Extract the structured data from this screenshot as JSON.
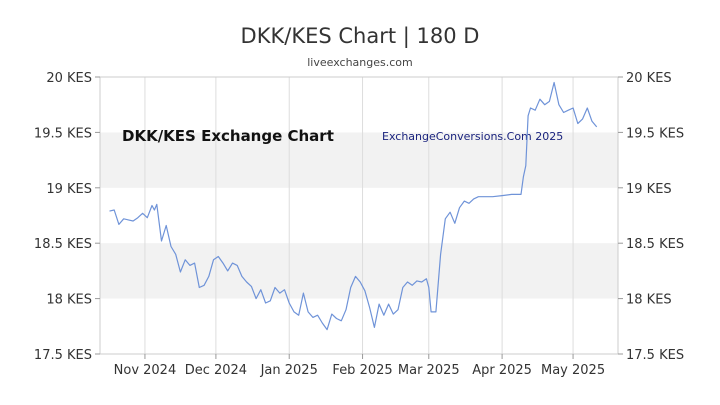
{
  "chart_data": {
    "type": "line",
    "title": "DKK/KES Chart | 180 D",
    "subtitle": "liveexchanges.com",
    "inner_title": "DKK/KES Exchange Chart",
    "watermark": "ExchangeConversions.Com 2025",
    "xlabel": "",
    "ylabel": "",
    "ylim": [
      17.5,
      20
    ],
    "xlim": [
      "2024-10-13",
      "2025-05-20"
    ],
    "y_ticks": [
      {
        "value": 20,
        "label": "20 KES"
      },
      {
        "value": 19.5,
        "label": "19.5 KES"
      },
      {
        "value": 19,
        "label": "19 KES"
      },
      {
        "value": 18.5,
        "label": "18.5 KES"
      },
      {
        "value": 18,
        "label": "18 KES"
      },
      {
        "value": 17.5,
        "label": "17.5 KES"
      }
    ],
    "x_ticks": [
      {
        "date": "2024-11-01",
        "label": "Nov 2024"
      },
      {
        "date": "2024-12-01",
        "label": "Dec 2024"
      },
      {
        "date": "2025-01-01",
        "label": "Jan 2025"
      },
      {
        "date": "2025-02-01",
        "label": "Feb 2025"
      },
      {
        "date": "2025-03-01",
        "label": "Mar 2025"
      },
      {
        "date": "2025-04-01",
        "label": "Apr 2025"
      },
      {
        "date": "2025-05-01",
        "label": "May 2025"
      }
    ],
    "grid": "alternating horizontal bands",
    "line_color": "#6f93d8",
    "band_color": "#f2f2f2",
    "series": [
      {
        "x": [
          "2024-10-17",
          "2024-10-19",
          "2024-10-21",
          "2024-10-23",
          "2024-10-25",
          "2024-10-27",
          "2024-10-29",
          "2024-10-31",
          "2024-11-02",
          "2024-11-04",
          "2024-11-05",
          "2024-11-06",
          "2024-11-08",
          "2024-11-10",
          "2024-11-12",
          "2024-11-14",
          "2024-11-16",
          "2024-11-18",
          "2024-11-20",
          "2024-11-22",
          "2024-11-24",
          "2024-11-26",
          "2024-11-28",
          "2024-11-30",
          "2024-12-02",
          "2024-12-04",
          "2024-12-06",
          "2024-12-08",
          "2024-12-10",
          "2024-12-12",
          "2024-12-14",
          "2024-12-16",
          "2024-12-18",
          "2024-12-20",
          "2024-12-22",
          "2024-12-24",
          "2024-12-26",
          "2024-12-28",
          "2024-12-30",
          "2025-01-01",
          "2025-01-03",
          "2025-01-05",
          "2025-01-07",
          "2025-01-09",
          "2025-01-11",
          "2025-01-13",
          "2025-01-15",
          "2025-01-17",
          "2025-01-19",
          "2025-01-21",
          "2025-01-23",
          "2025-01-25",
          "2025-01-27",
          "2025-01-29",
          "2025-01-31",
          "2025-02-02",
          "2025-02-04",
          "2025-02-06",
          "2025-02-08",
          "2025-02-10",
          "2025-02-12",
          "2025-02-14",
          "2025-02-16",
          "2025-02-18",
          "2025-02-20",
          "2025-02-22",
          "2025-02-24",
          "2025-02-26",
          "2025-02-28",
          "2025-03-01",
          "2025-03-02",
          "2025-03-04",
          "2025-03-06",
          "2025-03-08",
          "2025-03-10",
          "2025-03-12",
          "2025-03-14",
          "2025-03-16",
          "2025-03-18",
          "2025-03-20",
          "2025-03-22",
          "2025-03-24",
          "2025-03-28",
          "2025-04-01",
          "2025-04-05",
          "2025-04-09",
          "2025-04-10",
          "2025-04-11",
          "2025-04-12",
          "2025-04-13",
          "2025-04-15",
          "2025-04-17",
          "2025-04-19",
          "2025-04-21",
          "2025-04-23",
          "2025-04-25",
          "2025-04-27",
          "2025-04-29",
          "2025-05-01",
          "2025-05-03",
          "2025-05-05",
          "2025-05-07",
          "2025-05-09",
          "2025-05-11"
        ],
        "values": [
          18.79,
          18.8,
          18.67,
          18.72,
          18.71,
          18.7,
          18.73,
          18.77,
          18.73,
          18.84,
          18.8,
          18.85,
          18.52,
          18.66,
          18.47,
          18.4,
          18.24,
          18.35,
          18.3,
          18.32,
          18.1,
          18.12,
          18.2,
          18.35,
          18.38,
          18.32,
          18.25,
          18.32,
          18.3,
          18.2,
          18.15,
          18.11,
          18.0,
          18.08,
          17.96,
          17.98,
          18.1,
          18.05,
          18.08,
          17.96,
          17.88,
          17.85,
          18.05,
          17.88,
          17.83,
          17.85,
          17.78,
          17.72,
          17.86,
          17.82,
          17.8,
          17.9,
          18.1,
          18.2,
          18.15,
          18.07,
          17.92,
          17.74,
          17.95,
          17.85,
          17.95,
          17.86,
          17.9,
          18.1,
          18.15,
          18.12,
          18.16,
          18.15,
          18.18,
          18.1,
          17.88,
          17.88,
          18.4,
          18.72,
          18.78,
          18.68,
          18.82,
          18.88,
          18.86,
          18.9,
          18.92,
          18.92,
          18.92,
          18.93,
          18.94,
          18.94,
          19.1,
          19.2,
          19.65,
          19.72,
          19.7,
          19.8,
          19.75,
          19.78,
          19.95,
          19.75,
          19.68,
          19.7,
          19.72,
          19.58,
          19.62,
          19.72,
          19.6,
          19.55
        ]
      }
    ]
  }
}
